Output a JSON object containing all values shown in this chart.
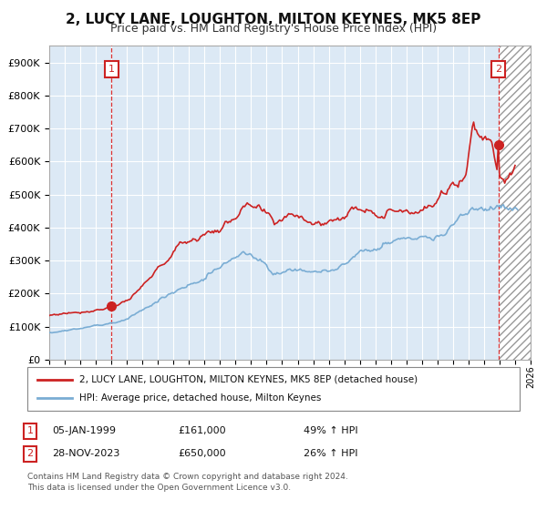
{
  "title": "2, LUCY LANE, LOUGHTON, MILTON KEYNES, MK5 8EP",
  "subtitle": "Price paid vs. HM Land Registry's House Price Index (HPI)",
  "background_color": "#dce9f5",
  "grid_color": "#ffffff",
  "sale1_date": 1999.01,
  "sale1_price": 161000,
  "sale2_date": 2023.92,
  "sale2_price": 650000,
  "legend_line1": "2, LUCY LANE, LOUGHTON, MILTON KEYNES, MK5 8EP (detached house)",
  "legend_line2": "HPI: Average price, detached house, Milton Keynes",
  "ann1_date": "05-JAN-1999",
  "ann1_price": "£161,000",
  "ann1_hpi": "49% ↑ HPI",
  "ann2_date": "28-NOV-2023",
  "ann2_price": "£650,000",
  "ann2_hpi": "26% ↑ HPI",
  "footer1": "Contains HM Land Registry data © Crown copyright and database right 2024.",
  "footer2": "This data is licensed under the Open Government Licence v3.0.",
  "ylim_max": 950000,
  "xlim_min": 1995.0,
  "xlim_max": 2026.0,
  "red_color": "#cc2222",
  "blue_color": "#7aadd4",
  "dashed_red": "#dd3333"
}
